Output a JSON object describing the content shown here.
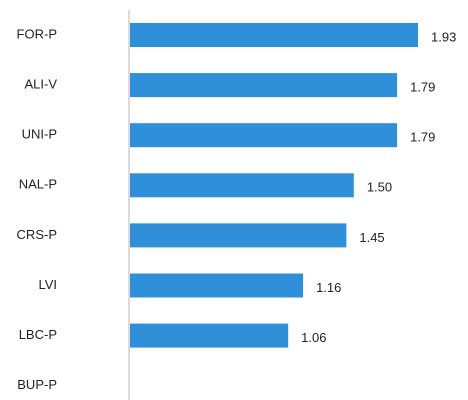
{
  "chart_data": {
    "type": "bar",
    "orientation": "horizontal",
    "categories": [
      "FOR-P",
      "ALI-V",
      "UNI-P",
      "NAL-P",
      "CRS-P",
      "LVI",
      "LBC-P",
      "BUP-P"
    ],
    "values": [
      1.93,
      1.79,
      1.79,
      1.5,
      1.45,
      1.16,
      1.06,
      null
    ],
    "value_labels": [
      "1.93",
      "1.79",
      "1.79",
      "1.50",
      "1.45",
      "1.16",
      "1.06",
      null
    ],
    "color": "#2f8fd8"
  }
}
